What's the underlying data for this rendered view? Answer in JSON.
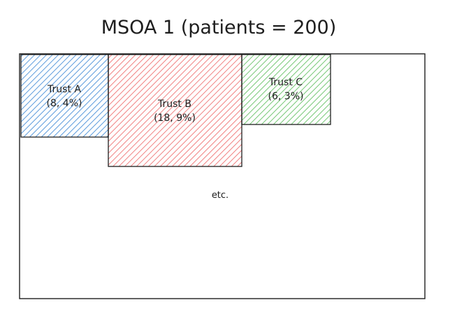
{
  "diagram": {
    "title": "MSOA 1 (patients = 200)",
    "outer_note": "etc.",
    "trusts": [
      {
        "name": "Trust A",
        "detail": "(8, 4%)",
        "color": "#4a90d9",
        "stroke": "#2f6fb8"
      },
      {
        "name": "Trust B",
        "detail": "(18, 9%)",
        "color": "#ef6b6b",
        "stroke": "#cf4b4b"
      },
      {
        "name": "Trust C",
        "detail": "(6, 3%)",
        "color": "#5fbf5f",
        "stroke": "#3f9f3f"
      }
    ],
    "colors": {
      "outline": "#1e1e1e",
      "background": "#ffffff"
    }
  }
}
